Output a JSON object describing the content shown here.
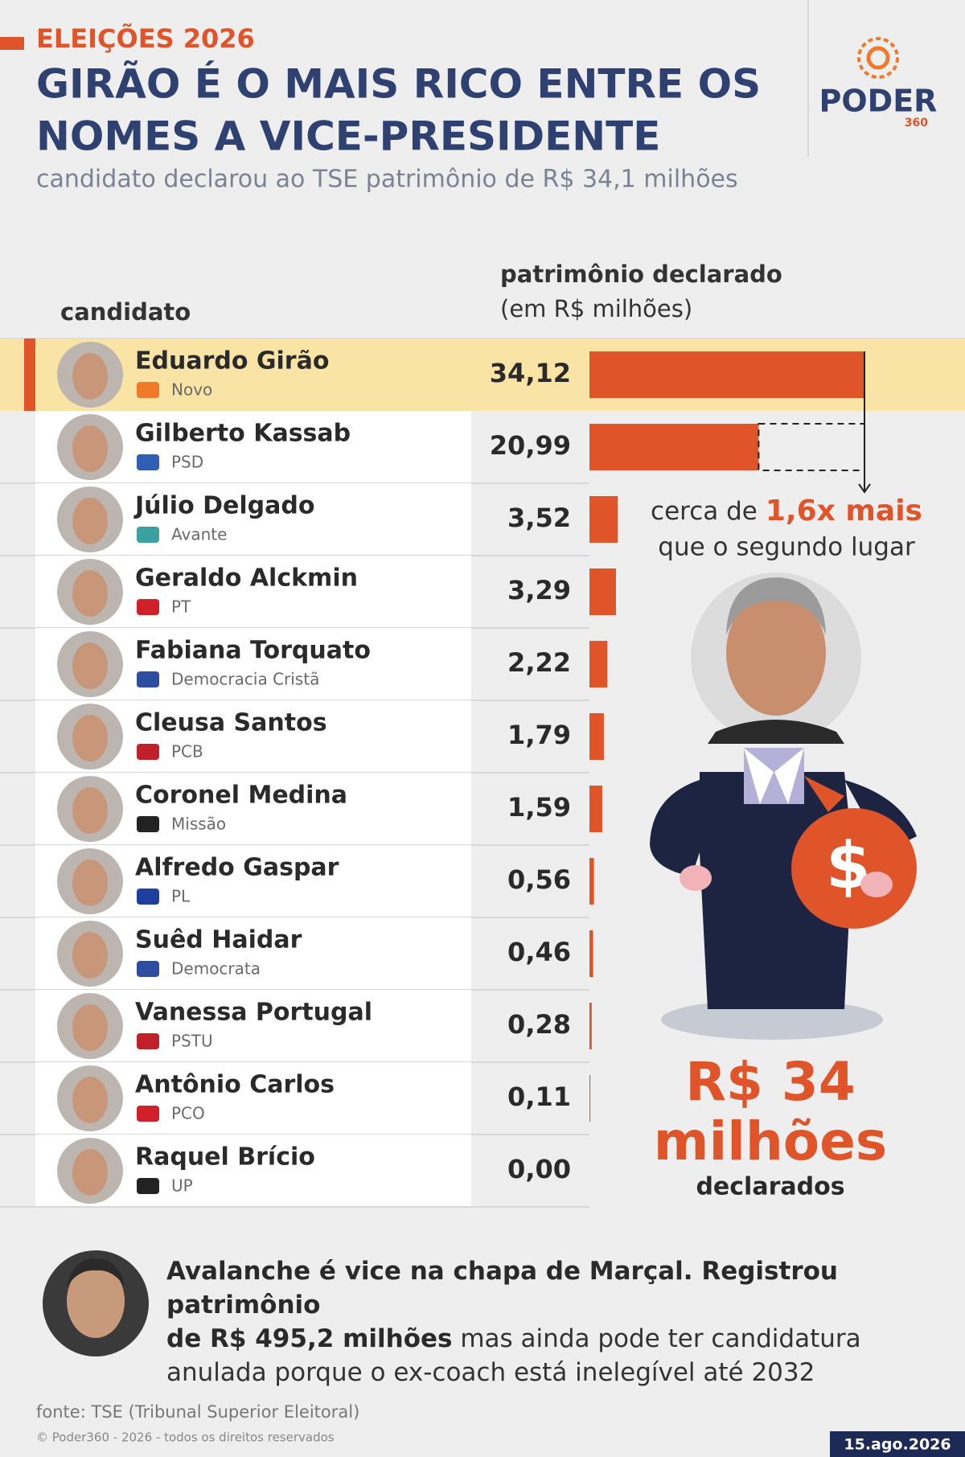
{
  "chart_data": {
    "type": "bar",
    "orientation": "horizontal",
    "kicker": "ELEIÇÕES 2026",
    "title": [
      "GIRÃO É O MAIS RICO ENTRE OS",
      "NOMES A VICE-PRESIDENTE"
    ],
    "subtitle": "candidato declarou ao TSE patrimônio de R$ 34,1 milhões",
    "category_header": "candidato",
    "value_header": [
      "patrimônio declarado",
      "(em R$ milhões)"
    ],
    "categories": [
      "Eduardo Girão",
      "Gilberto Kassab",
      "Júlio Delgado",
      "Geraldo Alckmin",
      "Fabiana Torquato",
      "Cleusa Santos",
      "Coronel Medina",
      "Alfredo Gaspar",
      "Suêd Haidar",
      "Vanessa Portugal",
      "Antônio Carlos",
      "Raquel Brício"
    ],
    "parties": [
      "Novo",
      "PSD",
      "Avante",
      "PT",
      "Democracia Cristã",
      "PCB",
      "Missão",
      "PL",
      "Democrata",
      "PSTU",
      "PCO",
      "UP"
    ],
    "values": [
      34.12,
      20.99,
      3.52,
      3.29,
      2.22,
      1.79,
      1.59,
      0.56,
      0.46,
      0.28,
      0.11,
      0.0
    ],
    "value_labels": [
      "34,12",
      "20,99",
      "3,52",
      "3,29",
      "2,22",
      "1,79",
      "1,59",
      "0,56",
      "0,46",
      "0,28",
      "0,11",
      "0,00"
    ],
    "color": "#e0542a",
    "annotation": {
      "prefix": "cerca de",
      "emphasis": "1,6x mais",
      "line2": "que o segundo lugar"
    },
    "callout": {
      "amount": "R$ 34",
      "unit": "milhões",
      "caption": "declarados"
    },
    "note": {
      "bold": "Avalanche é vice na chapa de Marçal. Registrou patrimônio",
      "bold2": "de R$ 495,2 milhões",
      "rest": "mas ainda pode ter candidatura",
      "rest2": "anulada porque o ex-coach está inelegível até 2032"
    },
    "source": "fonte: TSE (Tribunal Superior Eleitoral)",
    "copyright": "© Poder360 - 2026 - todos os direitos reservados",
    "date": "15.ago.2026",
    "logo": {
      "name": "PODER",
      "number": "360"
    }
  }
}
